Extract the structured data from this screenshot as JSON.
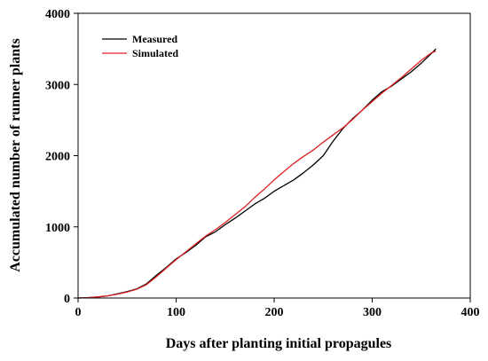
{
  "chart_data": {
    "type": "line",
    "title": "",
    "xlabel": "Days after planting initial propagules",
    "ylabel": "Accumulated number of runner plants",
    "xlim": [
      0,
      400
    ],
    "ylim": [
      0,
      4000
    ],
    "xticks": [
      0,
      100,
      200,
      300,
      400
    ],
    "yticks": [
      0,
      1000,
      2000,
      3000,
      4000
    ],
    "grid": false,
    "legend_position": "top-left",
    "series": [
      {
        "name": "Measured",
        "color": "#000000",
        "x": [
          0,
          10,
          20,
          30,
          40,
          50,
          60,
          70,
          80,
          90,
          100,
          110,
          120,
          130,
          140,
          150,
          160,
          170,
          180,
          190,
          200,
          210,
          220,
          230,
          240,
          250,
          260,
          270,
          280,
          290,
          300,
          310,
          320,
          330,
          340,
          350,
          360,
          365
        ],
        "y": [
          0,
          5,
          15,
          30,
          60,
          90,
          130,
          200,
          320,
          430,
          550,
          640,
          740,
          860,
          930,
          1030,
          1120,
          1220,
          1320,
          1400,
          1500,
          1580,
          1660,
          1760,
          1870,
          2000,
          2200,
          2380,
          2520,
          2640,
          2780,
          2900,
          2980,
          3080,
          3180,
          3300,
          3430,
          3500
        ]
      },
      {
        "name": "Simulated",
        "color": "#e02020",
        "x": [
          0,
          10,
          20,
          30,
          40,
          50,
          60,
          70,
          80,
          90,
          100,
          110,
          120,
          130,
          140,
          150,
          160,
          170,
          180,
          190,
          200,
          210,
          220,
          230,
          240,
          250,
          260,
          270,
          280,
          290,
          300,
          310,
          320,
          330,
          340,
          350,
          360,
          365
        ],
        "y": [
          0,
          5,
          15,
          30,
          55,
          85,
          125,
          190,
          300,
          420,
          540,
          650,
          760,
          870,
          960,
          1060,
          1170,
          1280,
          1410,
          1530,
          1660,
          1780,
          1890,
          1990,
          2080,
          2190,
          2290,
          2390,
          2510,
          2640,
          2760,
          2880,
          2990,
          3100,
          3220,
          3340,
          3440,
          3470
        ]
      }
    ]
  }
}
